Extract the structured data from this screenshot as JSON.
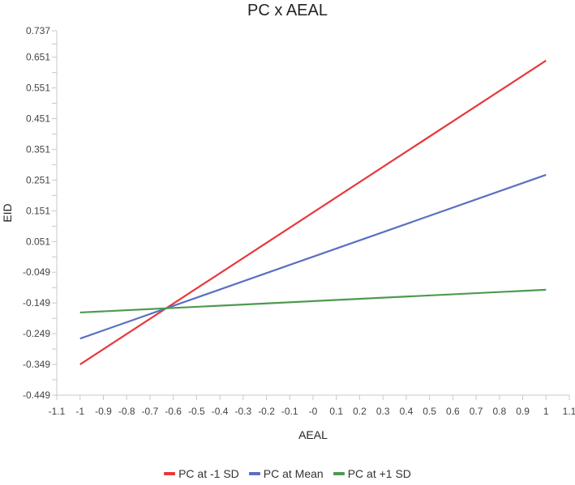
{
  "chart_data": {
    "type": "line",
    "title": "PC x AEAL",
    "xlabel": "AEAL",
    "ylabel": "EID",
    "xlim": [
      -1.1,
      1.1
    ],
    "ylim": [
      -0.449,
      0.737
    ],
    "x_ticks": [
      "-1.1",
      "-1",
      "-0.9",
      "-0.8",
      "-0.7",
      "-0.6",
      "-0.5",
      "-0.4",
      "-0.3",
      "-0.2",
      "-0.1",
      "-0",
      "0.1",
      "0.2",
      "0.3",
      "0.4",
      "0.5",
      "0.6",
      "0.7",
      "0.8",
      "0.9",
      "1",
      "1.1"
    ],
    "y_ticks": [
      "0.737",
      "0.651",
      "0.551",
      "0.451",
      "0.351",
      "0.251",
      "0.151",
      "0.051",
      "-0.049",
      "-0.149",
      "-0.249",
      "-0.349",
      "-0.449"
    ],
    "grid": false,
    "legend_position": "bottom",
    "x": [
      -1,
      1
    ],
    "series": [
      {
        "name": "PC at -1 SD",
        "color": "#e8383b",
        "values": [
          -0.349,
          0.64
        ]
      },
      {
        "name": "PC at Mean",
        "color": "#5b6fc2",
        "values": [
          -0.265,
          0.268
        ]
      },
      {
        "name": "PC at +1 SD",
        "color": "#4e9a4e",
        "values": [
          -0.18,
          -0.106
        ]
      }
    ]
  }
}
